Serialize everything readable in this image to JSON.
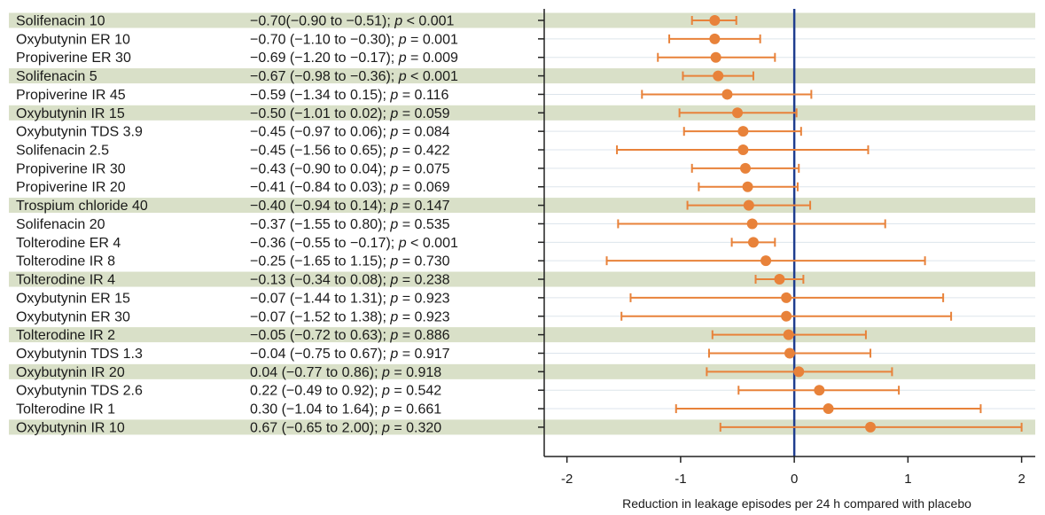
{
  "chart_data": {
    "type": "forest",
    "xlabel": "Reduction in leakage episodes per 24 h compared with placebo",
    "xlim": [
      -2.2,
      2.12
    ],
    "x_ticks": [
      "-2",
      "-1",
      "0",
      "1",
      "2"
    ],
    "x_tick_values": [
      -2,
      -1,
      0,
      1,
      2
    ],
    "reference_line": 0,
    "colors": {
      "point": "#e8823a",
      "ci": "#e8823a",
      "reference": "#1f3d8f",
      "band": "#d9e0c8",
      "gridline": "#dde5ec",
      "axis": "#222222"
    },
    "rows": [
      {
        "label": "Solifenacin 10",
        "text": "−0.70(−0.90 to −0.51); p < 0.001",
        "estimate": -0.7,
        "lower": -0.9,
        "upper": -0.51,
        "shaded": true
      },
      {
        "label": "Oxybutynin ER 10",
        "text": "−0.70 (−1.10 to −0.30); p = 0.001",
        "estimate": -0.7,
        "lower": -1.1,
        "upper": -0.3,
        "shaded": false
      },
      {
        "label": "Propiverine ER 30",
        "text": "−0.69 (−1.20 to −0.17); p = 0.009",
        "estimate": -0.69,
        "lower": -1.2,
        "upper": -0.17,
        "shaded": false
      },
      {
        "label": "Solifenacin 5",
        "text": "−0.67 (−0.98 to −0.36); p < 0.001",
        "estimate": -0.67,
        "lower": -0.98,
        "upper": -0.36,
        "shaded": true
      },
      {
        "label": "Propiverine IR 45",
        "text": "−0.59 (−1.34 to 0.15); p = 0.116",
        "estimate": -0.59,
        "lower": -1.34,
        "upper": 0.15,
        "shaded": false
      },
      {
        "label": "Oxybutynin IR 15",
        "text": "−0.50 (−1.01 to 0.02); p = 0.059",
        "estimate": -0.5,
        "lower": -1.01,
        "upper": 0.02,
        "shaded": true
      },
      {
        "label": "Oxybutynin TDS 3.9",
        "text": "−0.45 (−0.97 to 0.06); p = 0.084",
        "estimate": -0.45,
        "lower": -0.97,
        "upper": 0.06,
        "shaded": false
      },
      {
        "label": "Solifenacin 2.5",
        "text": "−0.45 (−1.56 to 0.65); p = 0.422",
        "estimate": -0.45,
        "lower": -1.56,
        "upper": 0.65,
        "shaded": false
      },
      {
        "label": "Propiverine IR 30",
        "text": "−0.43 (−0.90 to 0.04); p = 0.075",
        "estimate": -0.43,
        "lower": -0.9,
        "upper": 0.04,
        "shaded": false
      },
      {
        "label": "Propiverine IR 20",
        "text": "−0.41 (−0.84 to 0.03); p = 0.069",
        "estimate": -0.41,
        "lower": -0.84,
        "upper": 0.03,
        "shaded": false
      },
      {
        "label": "Trospium chloride 40",
        "text": "−0.40 (−0.94 to 0.14); p = 0.147",
        "estimate": -0.4,
        "lower": -0.94,
        "upper": 0.14,
        "shaded": true
      },
      {
        "label": "Solifenacin 20",
        "text": "−0.37 (−1.55 to 0.80); p = 0.535",
        "estimate": -0.37,
        "lower": -1.55,
        "upper": 0.8,
        "shaded": false
      },
      {
        "label": "Tolterodine ER 4",
        "text": "−0.36 (−0.55 to −0.17); p < 0.001",
        "estimate": -0.36,
        "lower": -0.55,
        "upper": -0.17,
        "shaded": false
      },
      {
        "label": "Tolterodine IR 8",
        "text": "−0.25 (−1.65 to 1.15); p = 0.730",
        "estimate": -0.25,
        "lower": -1.65,
        "upper": 1.15,
        "shaded": false
      },
      {
        "label": "Tolterodine IR 4",
        "text": "−0.13 (−0.34 to 0.08); p = 0.238",
        "estimate": -0.13,
        "lower": -0.34,
        "upper": 0.08,
        "shaded": true
      },
      {
        "label": "Oxybutynin ER 15",
        "text": "−0.07 (−1.44 to 1.31); p = 0.923",
        "estimate": -0.07,
        "lower": -1.44,
        "upper": 1.31,
        "shaded": false
      },
      {
        "label": "Oxybutynin ER 30",
        "text": "−0.07 (−1.52 to 1.38); p = 0.923",
        "estimate": -0.07,
        "lower": -1.52,
        "upper": 1.38,
        "shaded": false
      },
      {
        "label": "Tolterodine IR 2",
        "text": "−0.05 (−0.72 to 0.63); p = 0.886",
        "estimate": -0.05,
        "lower": -0.72,
        "upper": 0.63,
        "shaded": true
      },
      {
        "label": "Oxybutynin TDS 1.3",
        "text": "−0.04 (−0.75 to 0.67); p = 0.917",
        "estimate": -0.04,
        "lower": -0.75,
        "upper": 0.67,
        "shaded": false
      },
      {
        "label": "Oxybutynin IR 20",
        "text": "0.04 (−0.77 to 0.86); p = 0.918",
        "estimate": 0.04,
        "lower": -0.77,
        "upper": 0.86,
        "shaded": true
      },
      {
        "label": "Oxybutynin TDS 2.6",
        "text": "0.22 (−0.49 to 0.92); p = 0.542",
        "estimate": 0.22,
        "lower": -0.49,
        "upper": 0.92,
        "shaded": false
      },
      {
        "label": "Tolterodine IR 1",
        "text": "0.30 (−1.04 to 1.64); p = 0.661",
        "estimate": 0.3,
        "lower": -1.04,
        "upper": 1.64,
        "shaded": false
      },
      {
        "label": "Oxybutynin IR 10",
        "text": "0.67 (−0.65 to 2.00); p = 0.320",
        "estimate": 0.67,
        "lower": -0.65,
        "upper": 2.0,
        "shaded": true
      }
    ]
  }
}
